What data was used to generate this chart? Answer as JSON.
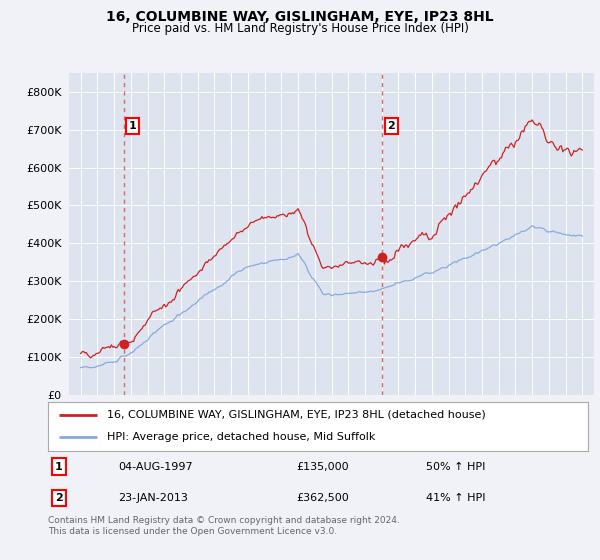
{
  "title": "16, COLUMBINE WAY, GISLINGHAM, EYE, IP23 8HL",
  "subtitle": "Price paid vs. HM Land Registry's House Price Index (HPI)",
  "legend_line1": "16, COLUMBINE WAY, GISLINGHAM, EYE, IP23 8HL (detached house)",
  "legend_line2": "HPI: Average price, detached house, Mid Suffolk",
  "transaction1_date": "04-AUG-1997",
  "transaction1_price": "£135,000",
  "transaction1_hpi": "50% ↑ HPI",
  "transaction2_date": "23-JAN-2013",
  "transaction2_price": "£362,500",
  "transaction2_hpi": "41% ↑ HPI",
  "footer": "Contains HM Land Registry data © Crown copyright and database right 2024.\nThis data is licensed under the Open Government Licence v3.0.",
  "hpi_color": "#88aadd",
  "price_color": "#cc2222",
  "dashed_line_color": "#dd6666",
  "marker_color": "#cc2222",
  "background_color": "#f0f2f8",
  "plot_bg_color": "#dde4f0",
  "ylim": [
    0,
    850000
  ],
  "yticks": [
    0,
    100000,
    200000,
    300000,
    400000,
    500000,
    600000,
    700000,
    800000
  ],
  "transaction1_year": 1997.58,
  "transaction2_year": 2013.05,
  "transaction1_value": 135000,
  "transaction2_value": 362500
}
